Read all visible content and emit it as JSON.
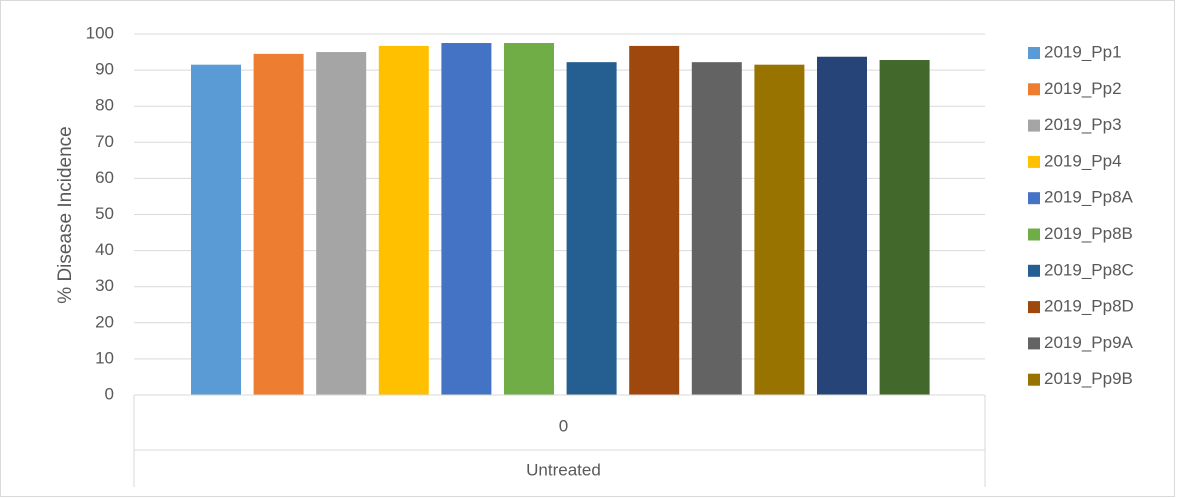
{
  "chart_data": {
    "type": "bar",
    "categories": [
      "0"
    ],
    "group_label": "Untreated",
    "ylabel": "% Disease Incidence",
    "xlabel": "",
    "ylim": [
      0,
      100
    ],
    "yticks": [
      0,
      10,
      20,
      30,
      40,
      50,
      60,
      70,
      80,
      90,
      100
    ],
    "grid": true,
    "legend_position": "right",
    "series": [
      {
        "name": "2019_Pp1",
        "values": [
          91.5
        ],
        "color": "#5b9bd5"
      },
      {
        "name": "2019_Pp2",
        "values": [
          94.5
        ],
        "color": "#ed7d31"
      },
      {
        "name": "2019_Pp3",
        "values": [
          95.0
        ],
        "color": "#a5a5a5"
      },
      {
        "name": "2019_Pp4",
        "values": [
          96.7
        ],
        "color": "#ffc000"
      },
      {
        "name": "2019_Pp8A",
        "values": [
          97.5
        ],
        "color": "#4472c4"
      },
      {
        "name": "2019_Pp8B",
        "values": [
          97.5
        ],
        "color": "#70ad47"
      },
      {
        "name": "2019_Pp8C",
        "values": [
          92.2
        ],
        "color": "#255e91"
      },
      {
        "name": "2019_Pp8D",
        "values": [
          96.7
        ],
        "color": "#9e480e"
      },
      {
        "name": "2019_Pp9A",
        "values": [
          92.2
        ],
        "color": "#636363"
      },
      {
        "name": "2019_Pp9B",
        "values": [
          91.5
        ],
        "color": "#997300"
      },
      {
        "name": "",
        "values": [
          93.7
        ],
        "color": "#264478"
      },
      {
        "name": "",
        "values": [
          92.8
        ],
        "color": "#43682b"
      }
    ]
  }
}
